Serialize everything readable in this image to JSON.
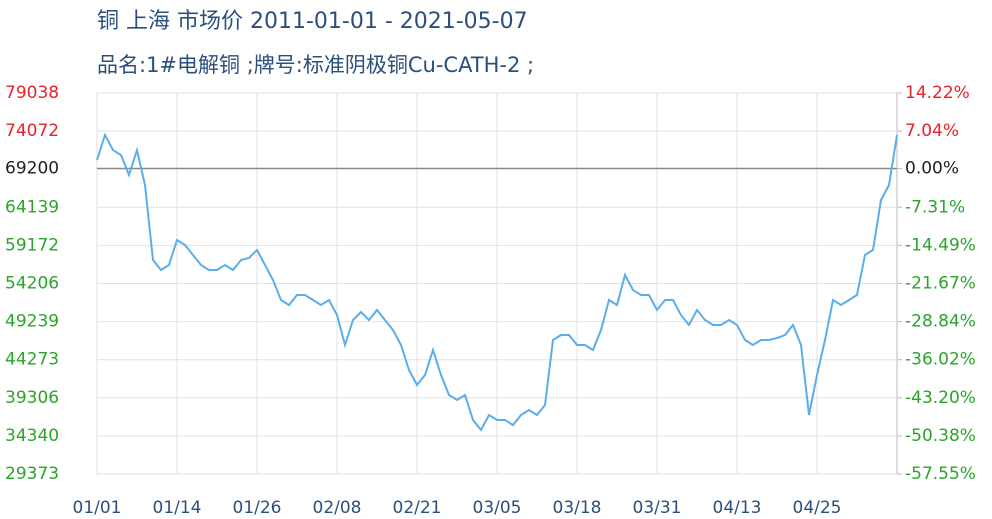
{
  "chart_data": {
    "type": "line",
    "title": "铜 上海 市场价 2011-01-01 - 2021-05-07",
    "subtitle": "品名:1#电解铜 ;牌号:标准阴极铜Cu-CATH-2 ;",
    "categories": [
      "01/01",
      null,
      null,
      null,
      null,
      null,
      null,
      null,
      null,
      null,
      "01/14",
      null,
      null,
      null,
      null,
      null,
      null,
      null,
      null,
      null,
      "01/26",
      null,
      null,
      null,
      null,
      null,
      null,
      null,
      null,
      null,
      "02/08",
      null,
      null,
      null,
      null,
      null,
      null,
      null,
      null,
      null,
      "02/21",
      null,
      null,
      null,
      null,
      null,
      null,
      null,
      null,
      null,
      "03/05",
      null,
      null,
      null,
      null,
      null,
      null,
      null,
      null,
      null,
      "03/18",
      null,
      null,
      null,
      null,
      null,
      null,
      null,
      null,
      null,
      "03/31",
      null,
      null,
      null,
      null,
      null,
      null,
      null,
      null,
      null,
      "04/13",
      null,
      null,
      null,
      null,
      null,
      null,
      null,
      null,
      null,
      "04/25",
      null,
      null,
      null,
      null,
      null,
      null,
      null,
      null,
      null,
      null
    ],
    "series": [
      {
        "color": "#5aaeea",
        "values": [
          70300,
          73560,
          71600,
          70950,
          68350,
          71600,
          67050,
          57270,
          55960,
          56620,
          59880,
          59220,
          57920,
          56620,
          55960,
          55960,
          56620,
          55960,
          57270,
          57530,
          58570,
          56620,
          54660,
          52050,
          51400,
          52710,
          52710,
          52050,
          51400,
          52050,
          50100,
          46190,
          49450,
          50490,
          49450,
          50750,
          49450,
          48150,
          46190,
          42930,
          40980,
          42280,
          45540,
          42280,
          39670,
          39020,
          39670,
          36410,
          35110,
          37060,
          36410,
          36410,
          35760,
          37060,
          37720,
          37060,
          38370,
          46840,
          47490,
          47490,
          46190,
          46190,
          45540,
          48150,
          52050,
          51400,
          55320,
          53360,
          52710,
          52710,
          50750,
          52050,
          52050,
          50100,
          48800,
          50750,
          49450,
          48800,
          48800,
          49450,
          48800,
          46840,
          46190,
          46840,
          46840,
          47100,
          47490,
          48800,
          46190,
          37060,
          42280,
          46840,
          52050,
          51400,
          52050,
          52710,
          57920,
          58570,
          65090,
          67050,
          73560
        ]
      }
    ],
    "ylim": [
      29373,
      79038
    ],
    "yticks": [
      79038,
      74072,
      69200,
      64139,
      59172,
      54206,
      49239,
      44273,
      39306,
      34340,
      29373
    ],
    "y2lim": [
      -57.55,
      14.22
    ],
    "y2ticks": [
      {
        "value": 14.22,
        "label": "14.22%"
      },
      {
        "value": 7.04,
        "label": "7.04%"
      },
      {
        "value": 0,
        "label": "0.00%"
      },
      {
        "value": -7.31,
        "label": "-7.31%"
      },
      {
        "value": -14.49,
        "label": "-14.49%"
      },
      {
        "value": -21.67,
        "label": "-21.67%"
      },
      {
        "value": -28.84,
        "label": "-28.84%"
      },
      {
        "value": -36.02,
        "label": "-36.02%"
      },
      {
        "value": -43.2,
        "label": "-43.20%"
      },
      {
        "value": -50.38,
        "label": "-50.38%"
      },
      {
        "value": -57.55,
        "label": "-57.55%"
      }
    ],
    "baseline": 69200,
    "up_color": "#e8222a",
    "down_color": "#2aa52a",
    "flat_color": "#222222",
    "grid": true
  }
}
